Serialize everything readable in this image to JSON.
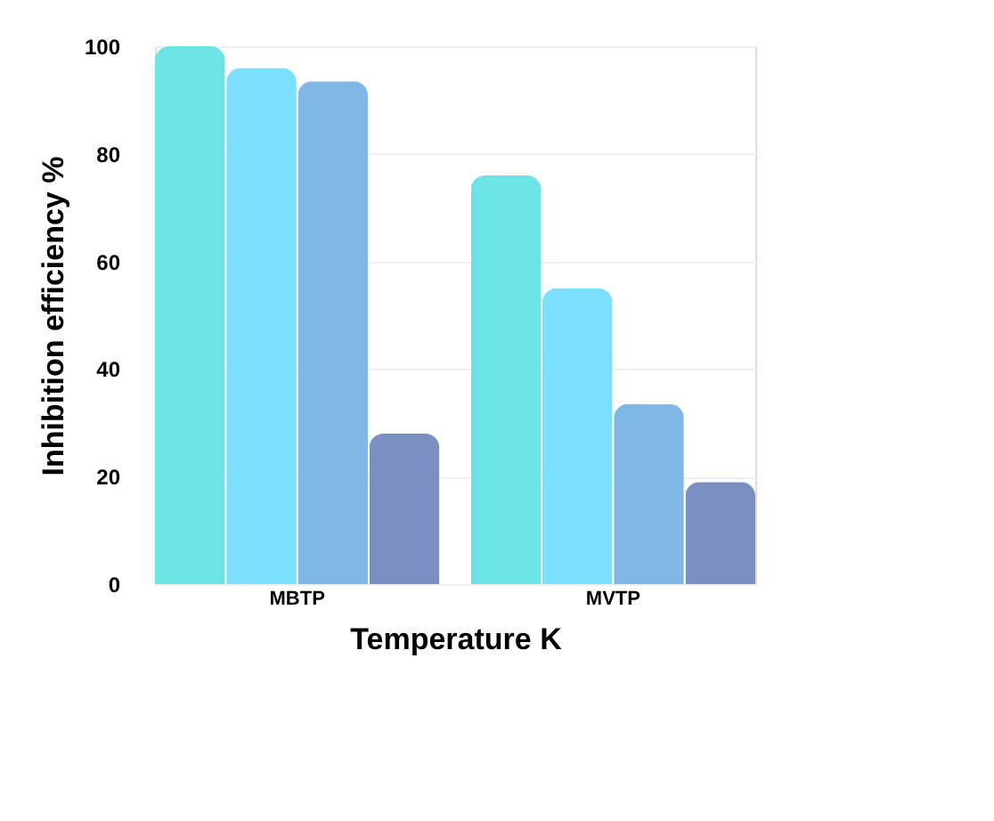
{
  "chart_data": {
    "type": "bar",
    "xlabel": "Temperature K",
    "ylabel": "Inhibition efficiency %",
    "categories": [
      "MBTP",
      "MVTP"
    ],
    "series": [
      {
        "color": "#6ce4e6",
        "values": [
          100,
          76
        ]
      },
      {
        "color": "#7cdffc",
        "values": [
          96,
          55
        ]
      },
      {
        "color": "#7fb8e6",
        "values": [
          93.5,
          33.5
        ]
      },
      {
        "color": "#7a90c2",
        "values": [
          28,
          19
        ]
      }
    ],
    "ylim": [
      0,
      100
    ],
    "yticks": [
      0,
      20,
      40,
      60,
      80,
      100
    ],
    "grid": "y",
    "legend": false
  }
}
